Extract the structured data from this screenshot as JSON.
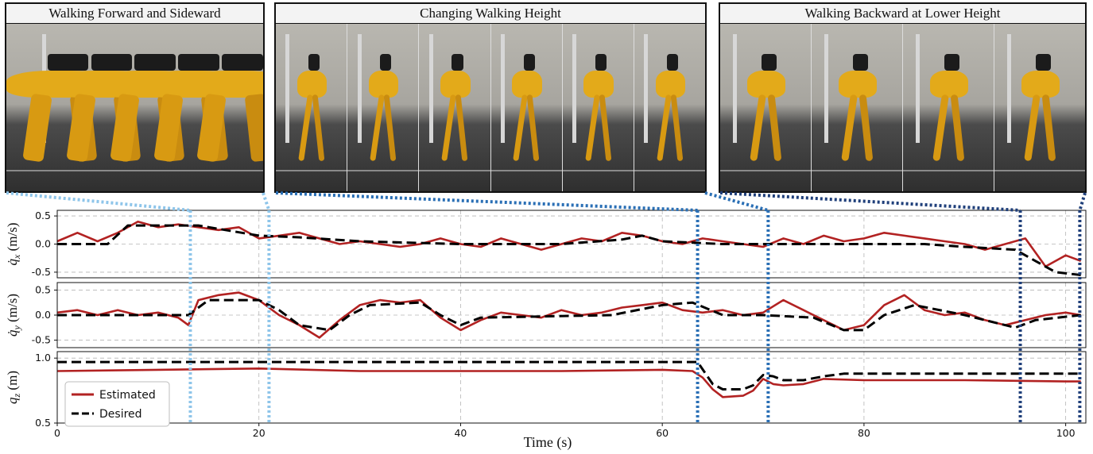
{
  "panels": [
    {
      "title": "Walking Forward and Sideward",
      "frames": 1
    },
    {
      "title": "Changing Walking Height",
      "frames": 6
    },
    {
      "title": "Walking Backward at Lower Height",
      "frames": 4
    }
  ],
  "chart_data": [
    {
      "type": "line",
      "ylabel": "q̇_x (m/s)",
      "ylabel_main": "q̇",
      "ylabel_sub": "x",
      "ylabel_unit": " (m/s)",
      "xlim": [
        0,
        102
      ],
      "ylim": [
        -0.6,
        0.6
      ],
      "yticks": [
        "0.5",
        "0.0",
        "-0.5"
      ],
      "ytick_values": [
        0.5,
        0.0,
        -0.5
      ],
      "grid": true,
      "series": [
        {
          "name": "Estimated",
          "color": "#b22222",
          "x": [
            0,
            2,
            4,
            6,
            8,
            10,
            12,
            14,
            16,
            18,
            20,
            22,
            24,
            26,
            28,
            30,
            32,
            34,
            36,
            38,
            40,
            42,
            44,
            46,
            48,
            50,
            52,
            54,
            56,
            58,
            60,
            62,
            64,
            66,
            68,
            70,
            72,
            74,
            76,
            78,
            80,
            82,
            84,
            86,
            88,
            90,
            92,
            94,
            96,
            98,
            100,
            101.5
          ],
          "y": [
            0.05,
            0.2,
            0.05,
            0.2,
            0.4,
            0.3,
            0.35,
            0.3,
            0.25,
            0.3,
            0.1,
            0.15,
            0.2,
            0.1,
            0.0,
            0.05,
            0.0,
            -0.05,
            0.0,
            0.1,
            0.0,
            -0.05,
            0.1,
            0.0,
            -0.1,
            0.0,
            0.1,
            0.05,
            0.2,
            0.15,
            0.05,
            0.0,
            0.1,
            0.05,
            0.0,
            -0.05,
            0.1,
            0.0,
            0.15,
            0.05,
            0.1,
            0.2,
            0.15,
            0.1,
            0.05,
            0.0,
            -0.1,
            0.0,
            0.1,
            -0.4,
            -0.2,
            -0.3
          ]
        },
        {
          "name": "Desired",
          "color": "#000000",
          "x": [
            0,
            5,
            7,
            14,
            20,
            24,
            30,
            40,
            50,
            56,
            58,
            60,
            66,
            70,
            76,
            80,
            86,
            90,
            95,
            97,
            99,
            101.5
          ],
          "y": [
            0.0,
            0.0,
            0.33,
            0.33,
            0.15,
            0.12,
            0.05,
            0.0,
            0.0,
            0.08,
            0.15,
            0.05,
            0.0,
            0.0,
            0.0,
            0.0,
            0.0,
            -0.05,
            -0.1,
            -0.3,
            -0.5,
            -0.55
          ]
        }
      ]
    },
    {
      "type": "line",
      "ylabel": "q̇_y (m/s)",
      "ylabel_main": "q̇",
      "ylabel_sub": "y",
      "ylabel_unit": " (m/s)",
      "xlim": [
        0,
        102
      ],
      "ylim": [
        -0.65,
        0.65
      ],
      "yticks": [
        "0.5",
        "0.0",
        "-0.5"
      ],
      "ytick_values": [
        0.5,
        0.0,
        -0.5
      ],
      "grid": true,
      "series": [
        {
          "name": "Estimated",
          "color": "#b22222",
          "x": [
            0,
            2,
            4,
            6,
            8,
            10,
            12,
            13,
            14,
            16,
            18,
            20,
            22,
            24,
            26,
            28,
            30,
            32,
            34,
            36,
            38,
            40,
            42,
            44,
            46,
            48,
            50,
            52,
            54,
            56,
            58,
            60,
            62,
            64,
            66,
            68,
            70,
            72,
            74,
            76,
            78,
            80,
            82,
            84,
            86,
            88,
            90,
            92,
            94,
            96,
            98,
            100,
            101.5
          ],
          "y": [
            0.05,
            0.1,
            0.0,
            0.1,
            0.0,
            0.05,
            -0.05,
            -0.2,
            0.3,
            0.4,
            0.45,
            0.3,
            0.0,
            -0.2,
            -0.45,
            -0.1,
            0.2,
            0.3,
            0.25,
            0.3,
            -0.05,
            -0.3,
            -0.1,
            0.05,
            0.0,
            -0.05,
            0.1,
            0.0,
            0.05,
            0.15,
            0.2,
            0.25,
            0.1,
            0.05,
            0.1,
            0.0,
            0.05,
            0.3,
            0.1,
            -0.1,
            -0.3,
            -0.2,
            0.2,
            0.4,
            0.1,
            0.0,
            0.05,
            -0.1,
            -0.2,
            -0.1,
            0.0,
            0.05,
            0.0
          ]
        },
        {
          "name": "Desired",
          "color": "#000000",
          "x": [
            0,
            13,
            15,
            20,
            22,
            24,
            27,
            29,
            31,
            36,
            38,
            40,
            42,
            55,
            60,
            63,
            66,
            70,
            75,
            78,
            80,
            82,
            85,
            90,
            95,
            97,
            101.5
          ],
          "y": [
            0.0,
            0.0,
            0.3,
            0.3,
            0.1,
            -0.2,
            -0.3,
            0.0,
            0.2,
            0.25,
            0.0,
            -0.2,
            -0.05,
            0.0,
            0.2,
            0.25,
            0.0,
            0.0,
            -0.05,
            -0.3,
            -0.3,
            0.0,
            0.2,
            0.0,
            -0.25,
            -0.1,
            0.0
          ]
        }
      ]
    },
    {
      "type": "line",
      "ylabel": "q_z (m)",
      "ylabel_main": "q",
      "ylabel_sub": "z",
      "ylabel_unit": " (m)",
      "xlabel": "Time (s)",
      "xlim": [
        0,
        102
      ],
      "ylim": [
        0.5,
        1.05
      ],
      "yticks": [
        "1.0",
        "0.5"
      ],
      "ytick_values": [
        1.0,
        0.5
      ],
      "xticks": [
        "0",
        "20",
        "40",
        "60",
        "80",
        "100"
      ],
      "xtick_values": [
        0,
        20,
        40,
        60,
        80,
        100
      ],
      "grid": true,
      "legend": {
        "position": "lower-left",
        "entries": [
          "Estimated",
          "Desired"
        ]
      },
      "series": [
        {
          "name": "Estimated",
          "color": "#b22222",
          "x": [
            0,
            10,
            20,
            30,
            40,
            50,
            60,
            63,
            64,
            65,
            66,
            68,
            69,
            70,
            71,
            72,
            74,
            76,
            80,
            90,
            100,
            101.5
          ],
          "y": [
            0.9,
            0.91,
            0.92,
            0.9,
            0.9,
            0.9,
            0.91,
            0.9,
            0.85,
            0.76,
            0.7,
            0.71,
            0.75,
            0.84,
            0.8,
            0.79,
            0.8,
            0.84,
            0.83,
            0.83,
            0.82,
            0.82
          ]
        },
        {
          "name": "Desired",
          "color": "#000000",
          "x": [
            0,
            62.5,
            63.5,
            65,
            66,
            68,
            69,
            70,
            71,
            72,
            74,
            76,
            78,
            100,
            101.5
          ],
          "y": [
            0.97,
            0.97,
            0.97,
            0.8,
            0.76,
            0.76,
            0.79,
            0.87,
            0.86,
            0.83,
            0.83,
            0.86,
            0.88,
            0.88,
            0.88
          ]
        }
      ]
    }
  ]
}
